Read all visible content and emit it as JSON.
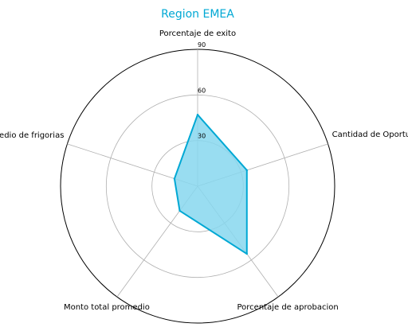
{
  "chart_data": {
    "type": "radar",
    "title": "Region EMEA",
    "categories": [
      "Porcentaje de exito",
      "Cantidad de Oportunidades",
      "Porcentaje de aprobacion",
      "Monto total promedio",
      "Promedio de frigorias"
    ],
    "series": [
      {
        "values": [
          47,
          34,
          55,
          20,
          16
        ]
      }
    ],
    "rlim": [
      0,
      90
    ],
    "rticks": [
      30,
      60,
      90
    ],
    "grid": true,
    "colors": {
      "title": "#00a8d4",
      "line": "#00a8d4",
      "fill": "#87d7ef",
      "grid": "#b0b0b0",
      "outer": "#000000"
    }
  }
}
